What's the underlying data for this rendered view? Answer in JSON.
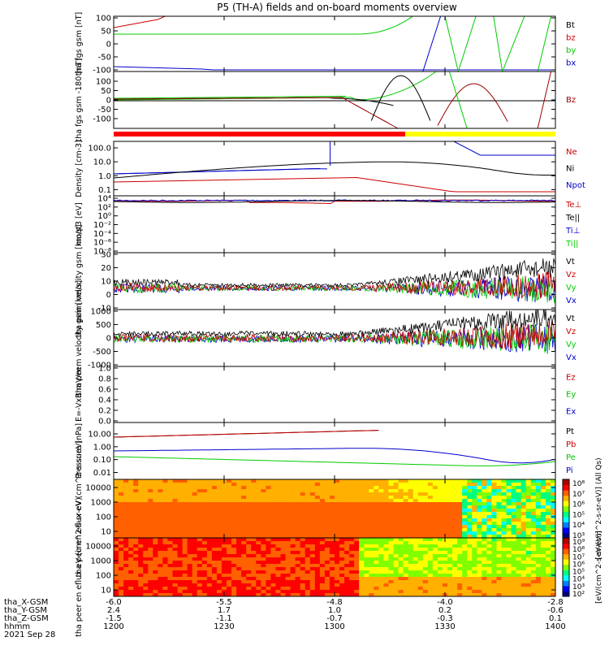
{
  "title": "P5 (TH-A) fields and on-board moments overview",
  "footer": {
    "date": "2021 Sep 28",
    "row_labels": [
      "tha_X-GSM",
      "tha_Y-GSM",
      "tha_Z-GSM",
      "hhmm"
    ],
    "ticks": [
      {
        "x": "-6.0",
        "y": "2.4",
        "z": "-1.5",
        "hhmm": "1200"
      },
      {
        "x": "-5.5",
        "y": "1.7",
        "z": "-1.1",
        "hhmm": "1230"
      },
      {
        "x": "-4.8",
        "y": "1.0",
        "z": "-0.7",
        "hhmm": "1300"
      },
      {
        "x": "-4.0",
        "y": "0.2",
        "z": "-0.3",
        "hhmm": "1330"
      },
      {
        "x": "-2.8",
        "y": "-0.6",
        "z": "0.1",
        "hhmm": "1400"
      }
    ]
  },
  "chart_data": [
    {
      "id": "fgs",
      "type": "line",
      "ylabel": "tha fgs gsm [nT]",
      "ylim": [
        -100,
        100
      ],
      "yticks": [
        "100",
        "50",
        "0",
        "-50",
        "-100"
      ],
      "legend": [
        {
          "name": "Bt",
          "color": "#000000"
        },
        {
          "name": "bz",
          "color": "#cc0000"
        },
        {
          "name": "by",
          "color": "#00cc00"
        },
        {
          "name": "bx",
          "color": "#0000cc"
        }
      ]
    },
    {
      "id": "fgs2",
      "type": "line",
      "ylabel": "tha fgs gsm -180 [nT]",
      "ylim": [
        -130,
        130
      ],
      "yticks": [
        "100",
        "50",
        "0",
        "-50",
        "-100"
      ],
      "legend": [
        {
          "name": "Bz",
          "color": "#990000"
        }
      ]
    },
    {
      "id": "density",
      "type": "line",
      "yscale": "log",
      "ylabel": "Density [cm-3]",
      "ylim": [
        0.03,
        300
      ],
      "yticks": [
        "100.0",
        "10.0",
        "1.0",
        "0.1"
      ],
      "legend": [
        {
          "name": "Ne",
          "color": "#cc0000"
        },
        {
          "name": "Ni",
          "color": "#000000"
        },
        {
          "name": "Npot",
          "color": "#0000cc"
        }
      ]
    },
    {
      "id": "temp",
      "type": "line",
      "yscale": "log",
      "ylabel": "moqt3 [eV]",
      "yticks": [
        "10⁴",
        "10²",
        "10⁰",
        "10⁻²",
        "10⁻⁴",
        "10⁻⁶",
        "10⁻⁸"
      ],
      "legend": [
        {
          "name": "Te⊥",
          "color": "#cc0000"
        },
        {
          "name": "Te||",
          "color": "#000000"
        },
        {
          "name": "Ti⊥",
          "color": "#0000cc"
        },
        {
          "name": "Ti||",
          "color": "#00cc00"
        }
      ]
    },
    {
      "id": "peim",
      "type": "line",
      "ylabel": "tha peim velocity gsm [km/s]",
      "ylim": [
        -10,
        30
      ],
      "yticks": [
        "30",
        "20",
        "10",
        "0",
        "-10"
      ],
      "legend": [
        {
          "name": "Vt",
          "color": "#000000"
        },
        {
          "name": "Vz",
          "color": "#cc0000"
        },
        {
          "name": "Vy",
          "color": "#00cc00"
        },
        {
          "name": "Vx",
          "color": "#0000cc"
        }
      ]
    },
    {
      "id": "peem",
      "type": "line",
      "ylabel": "tha peem velocity gsm [km/s]",
      "ylim": [
        -1000,
        1000
      ],
      "yticks": [
        "1000",
        "500",
        "0",
        "-500",
        "-1000"
      ],
      "legend": [
        {
          "name": "Vt",
          "color": "#000000"
        },
        {
          "name": "Vz",
          "color": "#cc0000"
        },
        {
          "name": "Vy",
          "color": "#00cc00"
        },
        {
          "name": "Vx",
          "color": "#0000cc"
        }
      ]
    },
    {
      "id": "efield",
      "type": "line",
      "ylabel": "E=-VxB mV/m",
      "ylim": [
        0,
        1
      ],
      "yticks": [
        "1.0",
        "0.8",
        "0.6",
        "0.4",
        "0.2",
        "0.0"
      ],
      "legend": [
        {
          "name": "Ez",
          "color": "#cc0000"
        },
        {
          "name": "Ey",
          "color": "#00cc00"
        },
        {
          "name": "Ex",
          "color": "#0000cc"
        }
      ]
    },
    {
      "id": "pressure",
      "type": "line",
      "yscale": "log",
      "ylabel": "Pressure [nPa]",
      "yticks": [
        "10.00",
        "1.00",
        "0.10",
        "0.01"
      ],
      "legend": [
        {
          "name": "Pt",
          "color": "#000000"
        },
        {
          "name": "Pb",
          "color": "#cc0000"
        },
        {
          "name": "Pe",
          "color": "#00cc00"
        },
        {
          "name": "Pi",
          "color": "#0000cc"
        }
      ]
    },
    {
      "id": "peir",
      "type": "heatmap",
      "ylabel": "tha peir en eflux eV (cm^2-s-sr-eV)",
      "yticks": [
        "10000",
        "1000",
        "100",
        "10"
      ],
      "colorbar": {
        "ticks": [
          "10⁸",
          "10⁷",
          "10⁶",
          "10⁵",
          "10⁴",
          "10³"
        ],
        "label": "[eV/(cm^2-s-sr-eV)] (All Qs)"
      }
    },
    {
      "id": "peer",
      "type": "heatmap",
      "ylabel": "tha peer en eflux eV (cm^2-s-sr-eV)",
      "yticks": [
        "10000",
        "1000",
        "100",
        "10"
      ],
      "colorbar": {
        "ticks": [
          "10⁹",
          "10⁸",
          "10⁷",
          "10⁶",
          "10⁵",
          "10⁴",
          "10³",
          "10²"
        ],
        "label": "[eV/(cm^2-s-sr-eV)]"
      }
    }
  ]
}
